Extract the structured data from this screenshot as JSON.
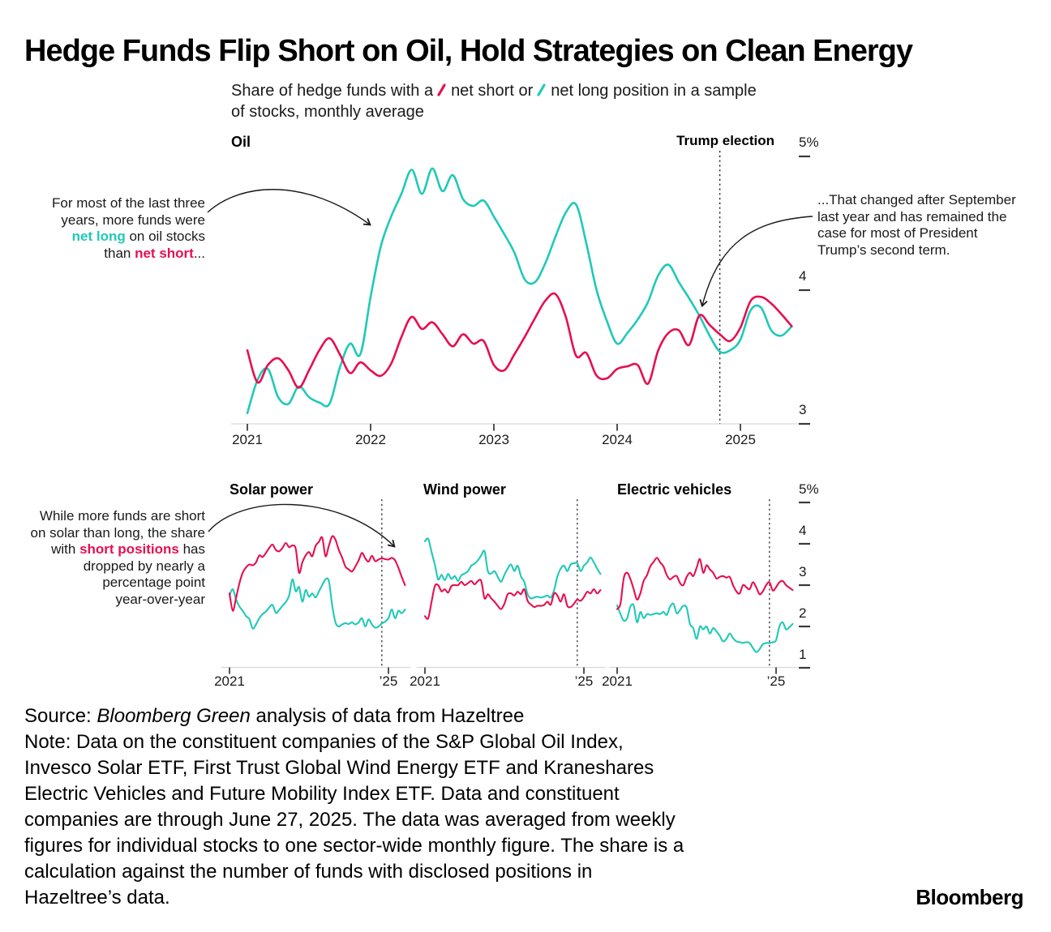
{
  "title": "Hedge Funds Flip Short on Oil, Hold Strategies on Clean Energy",
  "subtitle": {
    "prefix": "Share of hedge funds with a",
    "short_label": "net short or",
    "long_label": "net long position in a sample",
    "line2": "of stocks, monthly average"
  },
  "colors": {
    "net_short": "#e60f50",
    "net_long": "#20c9b8",
    "axis": "#d9d9d9",
    "tick": "#1a1a1a",
    "annotation_arrow": "#1a1a1a"
  },
  "oil": {
    "label": "Oil",
    "event_label": "Trump election",
    "annotation_left": {
      "line1": "For most of the last three",
      "line2": "years, more funds were",
      "line3_colored": "net long",
      "line3_rest": " on oil stocks",
      "line4_pre": "than ",
      "line4_colored": "net short",
      "line4_rest": "..."
    },
    "annotation_right_lines": [
      "...That changed after September",
      "last year and has remained the",
      "case for most of President",
      "Trump’s second term."
    ]
  },
  "solar_annotation": {
    "line1": "While more funds are short",
    "line2": "on solar than long, the share",
    "line3_pre": "with ",
    "line3_colored": "short positions",
    "line3_rest": " has",
    "line4": "dropped by nearly a",
    "line5": "percentage point",
    "line6": "year-over-year"
  },
  "small_y_ticks": [
    "5%",
    "4",
    "3",
    "2",
    "1"
  ],
  "chart_data": [
    {
      "type": "line",
      "title": "Oil",
      "frequency": "monthly",
      "x_start": "2021-01",
      "x_end": "2025-06",
      "x_ticks": [
        "2021",
        "2022",
        "2023",
        "2024",
        "2025"
      ],
      "y_ticks": [
        "5%",
        "4",
        "3"
      ],
      "ylim": [
        3,
        5
      ],
      "y_unit": "%",
      "event_line": {
        "label": "Trump election",
        "x": "2024-11"
      },
      "series": [
        {
          "name": "net short",
          "color_key": "net_short",
          "values": [
            3.55,
            3.31,
            3.44,
            3.49,
            3.4,
            3.27,
            3.4,
            3.55,
            3.64,
            3.52,
            3.38,
            3.46,
            3.4,
            3.36,
            3.45,
            3.65,
            3.8,
            3.71,
            3.76,
            3.67,
            3.58,
            3.67,
            3.6,
            3.62,
            3.44,
            3.4,
            3.52,
            3.65,
            3.79,
            3.92,
            3.97,
            3.8,
            3.51,
            3.53,
            3.36,
            3.34,
            3.41,
            3.43,
            3.44,
            3.3,
            3.55,
            3.68,
            3.7,
            3.59,
            3.81,
            3.74,
            3.67,
            3.62,
            3.72,
            3.92,
            3.95,
            3.9,
            3.82,
            3.73
          ]
        },
        {
          "name": "net long",
          "color_key": "net_long",
          "values": [
            3.08,
            3.33,
            3.41,
            3.2,
            3.15,
            3.28,
            3.2,
            3.16,
            3.15,
            3.42,
            3.6,
            3.52,
            3.95,
            4.33,
            4.55,
            4.72,
            4.9,
            4.72,
            4.91,
            4.74,
            4.86,
            4.68,
            4.63,
            4.67,
            4.55,
            4.42,
            4.28,
            4.08,
            4.06,
            4.2,
            4.4,
            4.58,
            4.64,
            4.35,
            4.0,
            3.77,
            3.6,
            3.68,
            3.78,
            3.91,
            4.11,
            4.19,
            4.06,
            3.94,
            3.81,
            3.66,
            3.54,
            3.55,
            3.63,
            3.85,
            3.87,
            3.7,
            3.66,
            3.73
          ]
        }
      ]
    },
    {
      "type": "line",
      "title": "Solar power",
      "frequency": "monthly",
      "x_start": "2021-01",
      "x_end": "2025-06",
      "x_ticks": [
        "2021",
        "’25"
      ],
      "ylim": [
        1,
        5
      ],
      "y_unit": "%",
      "event_line": {
        "label": "Trump election",
        "x": "2024-11"
      },
      "series": [
        {
          "name": "net short",
          "color_key": "net_short",
          "values": [
            2.8,
            2.38,
            2.7,
            3.05,
            3.3,
            3.43,
            3.5,
            3.48,
            3.55,
            3.72,
            3.68,
            3.78,
            3.9,
            3.98,
            3.85,
            3.82,
            3.9,
            4.02,
            3.92,
            3.96,
            3.88,
            3.3,
            3.55,
            3.72,
            3.8,
            3.7,
            3.95,
            4.05,
            4.15,
            3.7,
            3.95,
            4.18,
            4.1,
            3.85,
            3.67,
            3.45,
            3.38,
            3.33,
            3.45,
            3.6,
            3.78,
            3.65,
            3.57,
            3.71,
            3.58,
            3.62,
            3.65,
            3.63,
            3.62,
            3.66,
            3.6,
            3.42,
            3.2,
            3.0
          ]
        },
        {
          "name": "net long",
          "color_key": "net_long",
          "values": [
            2.75,
            2.9,
            2.65,
            2.48,
            2.38,
            2.25,
            2.18,
            1.95,
            2.05,
            2.2,
            2.3,
            2.36,
            2.46,
            2.52,
            2.33,
            2.4,
            2.5,
            2.59,
            2.75,
            3.14,
            2.85,
            2.95,
            2.6,
            2.88,
            2.72,
            2.8,
            2.7,
            2.85,
            3.0,
            3.14,
            3.1,
            2.52,
            2.1,
            2.0,
            2.05,
            2.08,
            2.06,
            2.1,
            2.05,
            2.1,
            2.2,
            2.0,
            2.17,
            2.05,
            1.97,
            2.0,
            2.07,
            2.12,
            2.2,
            2.41,
            2.2,
            2.38,
            2.32,
            2.41
          ]
        }
      ]
    },
    {
      "type": "line",
      "title": "Wind power",
      "frequency": "monthly",
      "x_start": "2021-01",
      "x_end": "2025-06",
      "x_ticks": [
        "2021",
        "’25"
      ],
      "ylim": [
        1,
        5
      ],
      "y_unit": "%",
      "event_line": {
        "label": "Trump election",
        "x": "2024-11"
      },
      "series": [
        {
          "name": "net short",
          "color_key": "net_short",
          "values": [
            2.25,
            2.2,
            2.6,
            2.98,
            3.0,
            2.85,
            2.9,
            2.82,
            2.98,
            3.0,
            3.0,
            3.08,
            3.0,
            3.05,
            3.1,
            3.02,
            3.1,
            3.1,
            2.68,
            2.78,
            2.68,
            2.6,
            2.5,
            2.42,
            2.55,
            2.78,
            2.8,
            2.75,
            2.84,
            2.78,
            2.9,
            2.62,
            2.53,
            2.47,
            2.5,
            2.5,
            2.52,
            2.6,
            2.53,
            2.8,
            2.75,
            2.6,
            2.78,
            2.5,
            2.47,
            2.55,
            2.65,
            2.62,
            2.71,
            2.84,
            2.8,
            2.9,
            2.8,
            2.88
          ]
        },
        {
          "name": "net long",
          "color_key": "net_long",
          "values": [
            4.06,
            4.12,
            3.8,
            3.49,
            3.14,
            3.25,
            3.12,
            3.27,
            3.15,
            3.22,
            3.1,
            3.24,
            3.28,
            3.34,
            3.47,
            3.52,
            3.6,
            3.72,
            3.82,
            3.34,
            3.28,
            3.34,
            3.2,
            3.08,
            3.25,
            3.4,
            3.5,
            3.34,
            3.47,
            3.21,
            3.08,
            2.78,
            2.68,
            2.7,
            2.72,
            2.7,
            2.72,
            2.75,
            2.7,
            2.88,
            3.21,
            3.4,
            3.47,
            3.34,
            3.5,
            3.53,
            3.53,
            3.34,
            3.47,
            3.55,
            3.67,
            3.55,
            3.4,
            3.27
          ]
        }
      ]
    },
    {
      "type": "line",
      "title": "Electric vehicles",
      "frequency": "monthly",
      "x_start": "2021-01",
      "x_end": "2025-06",
      "x_ticks": [
        "2021",
        "’25"
      ],
      "ylim": [
        1,
        5
      ],
      "y_unit": "%",
      "event_line": {
        "label": "Trump election",
        "x": "2024-11"
      },
      "series": [
        {
          "name": "net short",
          "color_key": "net_short",
          "values": [
            2.42,
            2.55,
            3.17,
            3.3,
            3.15,
            2.9,
            2.65,
            2.8,
            3.1,
            3.24,
            3.45,
            3.56,
            3.66,
            3.55,
            3.45,
            3.24,
            3.14,
            3.2,
            3.22,
            3.05,
            3.0,
            3.2,
            3.3,
            3.22,
            3.42,
            3.63,
            3.3,
            3.48,
            3.38,
            3.3,
            3.16,
            3.2,
            3.22,
            3.18,
            3.2,
            3.0,
            2.85,
            2.8,
            3.0,
            2.95,
            2.9,
            3.07,
            2.95,
            2.78,
            2.85,
            3.0,
            3.07,
            2.87,
            2.95,
            3.07,
            3.1,
            3.0,
            2.94,
            2.88
          ]
        },
        {
          "name": "net long",
          "color_key": "net_long",
          "values": [
            2.51,
            2.3,
            2.14,
            2.2,
            2.48,
            2.51,
            2.1,
            2.35,
            2.2,
            2.3,
            2.28,
            2.3,
            2.32,
            2.3,
            2.35,
            2.28,
            2.48,
            2.55,
            2.32,
            2.4,
            2.5,
            2.45,
            2.06,
            1.96,
            1.7,
            2.0,
            1.93,
            2.0,
            1.83,
            1.96,
            1.88,
            1.77,
            1.64,
            1.7,
            1.83,
            1.72,
            1.64,
            1.62,
            1.6,
            1.62,
            1.6,
            1.48,
            1.38,
            1.45,
            1.57,
            1.6,
            1.6,
            1.62,
            1.67,
            2.0,
            2.1,
            1.93,
            1.98,
            2.06
          ]
        }
      ]
    }
  ],
  "footer": {
    "source_prefix": "Source: ",
    "source_italic": "Bloomberg Green",
    "source_rest": " analysis of data from Hazeltree",
    "note_lines": [
      "Note: Data on the constituent companies of the S&P Global Oil Index,",
      "Invesco Solar ETF, First Trust Global Wind Energy ETF and Kraneshares",
      "Electric Vehicles and Future Mobility Index ETF. Data and constituent",
      "companies are through June 27, 2025. The data was averaged from weekly",
      "figures for individual stocks to one sector-wide monthly figure. The share is a",
      "calculation against the number of funds with disclosed positions in",
      "Hazeltree’s data."
    ]
  },
  "logo": "Bloomberg"
}
